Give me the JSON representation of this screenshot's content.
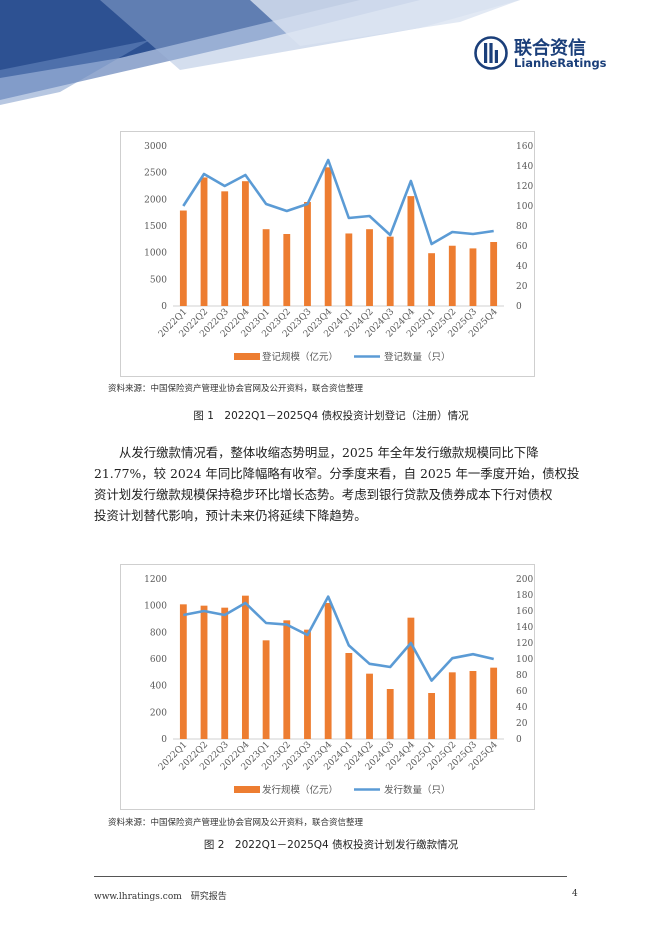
{
  "header": {
    "logo_cn": "联合资信",
    "logo_en": "LianheRatings",
    "colors": {
      "navy": "#1b3f7a",
      "bar": "#ED7D31",
      "line": "#5B9BD5"
    }
  },
  "figure1": {
    "source": "资料来源：中国保险资产管理业协会官网及公开资料，联合资信整理",
    "caption": "图 1　2022Q1－2025Q4 债权投资计划登记（注册）情况"
  },
  "paragraph": {
    "lines": [
      "从发行缴款情况看，整体收缩态势明显，2025 年全年发行缴款规模同比下降",
      "21.77%，较 2024 年同比降幅略有收窄。分季度来看，自 2025 年一季度开始，债权投",
      "资计划发行缴款规模保持稳步环比增长态势。考虑到银行贷款及债券成本下行对债权",
      "投资计划替代影响，预计未来仍将延续下降趋势。"
    ]
  },
  "figure2": {
    "source": "资料来源：中国保险资产管理业协会官网及公开资料，联合资信整理",
    "caption": "图 2　2022Q1－2025Q4 债权投资计划发行缴款情况"
  },
  "footer": {
    "site": "www.lhratings.com　研究报告",
    "page": "4"
  },
  "chart_data": [
    {
      "type": "bar",
      "categories": [
        "2022Q1",
        "2022Q2",
        "2022Q3",
        "2022Q4",
        "2023Q1",
        "2023Q2",
        "2023Q3",
        "2023Q4",
        "2024Q1",
        "2024Q2",
        "2024Q3",
        "2024Q4",
        "2025Q1",
        "2025Q2",
        "2025Q3",
        "2025Q4"
      ],
      "series": [
        {
          "name": "登记规模（亿元）",
          "type": "bar",
          "axis": "left",
          "color": "#ED7D31",
          "values": [
            1790,
            2410,
            2150,
            2340,
            1440,
            1350,
            1950,
            2600,
            1360,
            1440,
            1300,
            2060,
            990,
            1130,
            1080,
            1200
          ]
        },
        {
          "name": "登记数量（只）",
          "type": "line",
          "axis": "right",
          "color": "#5B9BD5",
          "values": [
            100,
            132,
            120,
            131,
            102,
            95,
            102,
            146,
            88,
            90,
            71,
            125,
            62,
            74,
            72,
            75
          ]
        }
      ],
      "ylim_left": [
        0,
        3000
      ],
      "yticks_left": [
        "0",
        "500",
        "1000",
        "1500",
        "2000",
        "2500",
        "3000"
      ],
      "ylim_right": [
        0,
        160
      ],
      "yticks_right": [
        "0",
        "20",
        "40",
        "60",
        "80",
        "100",
        "120",
        "140",
        "160"
      ],
      "grid": false,
      "legend": "bottom"
    },
    {
      "type": "bar",
      "categories": [
        "2022Q1",
        "2022Q2",
        "2022Q3",
        "2022Q4",
        "2023Q1",
        "2023Q2",
        "2023Q3",
        "2023Q4",
        "2024Q1",
        "2024Q2",
        "2024Q3",
        "2024Q4",
        "2025Q1",
        "2025Q2",
        "2025Q3",
        "2025Q4"
      ],
      "series": [
        {
          "name": "发行规模（亿元）",
          "type": "bar",
          "axis": "left",
          "color": "#ED7D31",
          "values": [
            1010,
            1000,
            985,
            1075,
            740,
            890,
            820,
            1020,
            645,
            490,
            375,
            910,
            345,
            500,
            510,
            535
          ]
        },
        {
          "name": "发行数量（只）",
          "type": "line",
          "axis": "right",
          "color": "#5B9BD5",
          "values": [
            155,
            160,
            155,
            170,
            145,
            143,
            130,
            178,
            117,
            94,
            90,
            120,
            73,
            101,
            106,
            100
          ]
        }
      ],
      "ylim_left": [
        0,
        1200
      ],
      "yticks_left": [
        "0",
        "200",
        "400",
        "600",
        "800",
        "1000",
        "1200"
      ],
      "ylim_right": [
        0,
        200
      ],
      "yticks_right": [
        "0",
        "20",
        "40",
        "60",
        "80",
        "100",
        "120",
        "140",
        "160",
        "180",
        "200"
      ],
      "grid": false,
      "legend": "bottom"
    }
  ]
}
